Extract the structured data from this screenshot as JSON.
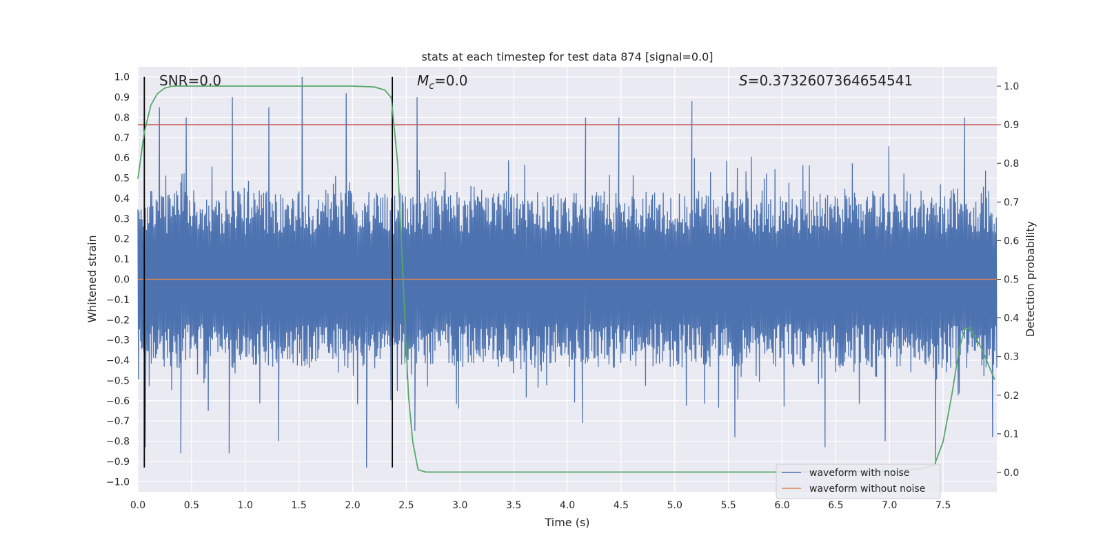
{
  "chart_data": {
    "type": "line",
    "title": "stats at each timestep for test data 874 [signal=0.0]",
    "xlabel": "Time (s)",
    "ylabel_left": "Whitened strain",
    "ylabel_right": "Detection probability",
    "xlim": [
      0.0,
      8.0
    ],
    "ylim_left": [
      -1.05,
      1.05
    ],
    "ylim_right": [
      -0.05,
      1.05
    ],
    "xticks": [
      "0.0",
      "0.5",
      "1.0",
      "1.5",
      "2.0",
      "2.5",
      "3.0",
      "3.5",
      "4.0",
      "4.5",
      "5.0",
      "5.5",
      "6.0",
      "6.5",
      "7.0",
      "7.5"
    ],
    "xtick_values": [
      0.0,
      0.5,
      1.0,
      1.5,
      2.0,
      2.5,
      3.0,
      3.5,
      4.0,
      4.5,
      5.0,
      5.5,
      6.0,
      6.5,
      7.0,
      7.5
    ],
    "yticks_left": [
      "1.0",
      "0.9",
      "0.8",
      "0.7",
      "0.6",
      "0.5",
      "0.4",
      "0.3",
      "0.2",
      "0.1",
      "0.0",
      "−0.1",
      "−0.2",
      "−0.3",
      "−0.4",
      "−0.5",
      "−0.6",
      "−0.7",
      "−0.8",
      "−0.9",
      "−1.0"
    ],
    "ytick_values_left": [
      1.0,
      0.9,
      0.8,
      0.7,
      0.6,
      0.5,
      0.4,
      0.3,
      0.2,
      0.1,
      0.0,
      -0.1,
      -0.2,
      -0.3,
      -0.4,
      -0.5,
      -0.6,
      -0.7,
      -0.8,
      -0.9,
      -1.0
    ],
    "yticks_right": [
      "1.0",
      "0.9",
      "0.8",
      "0.7",
      "0.6",
      "0.5",
      "0.4",
      "0.3",
      "0.2",
      "0.1",
      "0.0"
    ],
    "ytick_values_right": [
      1.0,
      0.9,
      0.8,
      0.7,
      0.6,
      0.5,
      0.4,
      0.3,
      0.2,
      0.1,
      0.0
    ],
    "annotations": {
      "snr": "SNR=0.0",
      "mc_symbol": "M",
      "mc_sub": "c",
      "mc_value": "=0.0",
      "s_symbol": "S",
      "s_value": "=0.3732607364654541"
    },
    "threshold_line": {
      "axis": "right",
      "value": 0.9,
      "color": "#c44e52"
    },
    "vertical_markers_x": [
      0.06,
      2.37
    ],
    "series": [
      {
        "name": "waveform with noise",
        "color": "#4c72b0",
        "axis": "left",
        "description": "noise envelope, approx. +-0.4 typical with spikes up to 1.0 and down to -0.94",
        "spikes_high": [
          [
            0.2,
            0.85
          ],
          [
            0.45,
            0.8
          ],
          [
            0.88,
            0.9
          ],
          [
            1.22,
            0.85
          ],
          [
            1.53,
            1.0
          ],
          [
            1.94,
            0.92
          ],
          [
            2.6,
            0.9
          ],
          [
            4.17,
            0.8
          ],
          [
            4.48,
            0.8
          ],
          [
            5.16,
            0.88
          ],
          [
            7.7,
            0.8
          ]
        ],
        "spikes_low": [
          [
            0.07,
            -0.83
          ],
          [
            0.4,
            -0.86
          ],
          [
            0.85,
            -0.86
          ],
          [
            1.31,
            -0.8
          ],
          [
            2.13,
            -0.93
          ],
          [
            2.58,
            -0.75
          ],
          [
            4.14,
            -0.71
          ],
          [
            5.56,
            -0.78
          ],
          [
            6.4,
            -0.83
          ],
          [
            6.96,
            -0.8
          ],
          [
            7.43,
            -0.91
          ],
          [
            7.96,
            -0.78
          ]
        ]
      },
      {
        "name": "waveform without noise",
        "color": "#dd8452",
        "axis": "left",
        "x": [
          0.0,
          8.0
        ],
        "values": [
          0.0,
          0.0
        ]
      },
      {
        "name": "detection probability",
        "color": "#55a868",
        "axis": "right",
        "x": [
          0.0,
          0.06,
          0.12,
          0.18,
          0.25,
          0.32,
          0.4,
          0.5,
          1.0,
          1.5,
          2.0,
          2.2,
          2.3,
          2.36,
          2.42,
          2.47,
          2.52,
          2.56,
          2.61,
          2.68,
          3.0,
          4.0,
          5.0,
          6.0,
          6.4,
          7.0,
          7.3,
          7.42,
          7.5,
          7.58,
          7.65,
          7.7,
          7.75,
          7.8,
          7.86,
          7.92,
          7.98
        ],
        "values": [
          0.76,
          0.88,
          0.95,
          0.98,
          0.995,
          1.0,
          1.0,
          1.0,
          1.0,
          1.0,
          1.0,
          0.998,
          0.99,
          0.97,
          0.8,
          0.5,
          0.2,
          0.08,
          0.007,
          0.001,
          0.001,
          0.001,
          0.001,
          0.001,
          0.001,
          0.003,
          0.01,
          0.02,
          0.08,
          0.2,
          0.32,
          0.37,
          0.375,
          0.35,
          0.32,
          0.28,
          0.24
        ]
      }
    ],
    "legend": {
      "placement": "bottom-right",
      "entries": [
        {
          "label": "waveform with noise",
          "color": "#4c72b0"
        },
        {
          "label": "waveform without noise",
          "color": "#dd8452"
        }
      ]
    },
    "style": {
      "plot_background": "#eaeaf2",
      "grid": true,
      "grid_color": "#ffffff"
    }
  }
}
